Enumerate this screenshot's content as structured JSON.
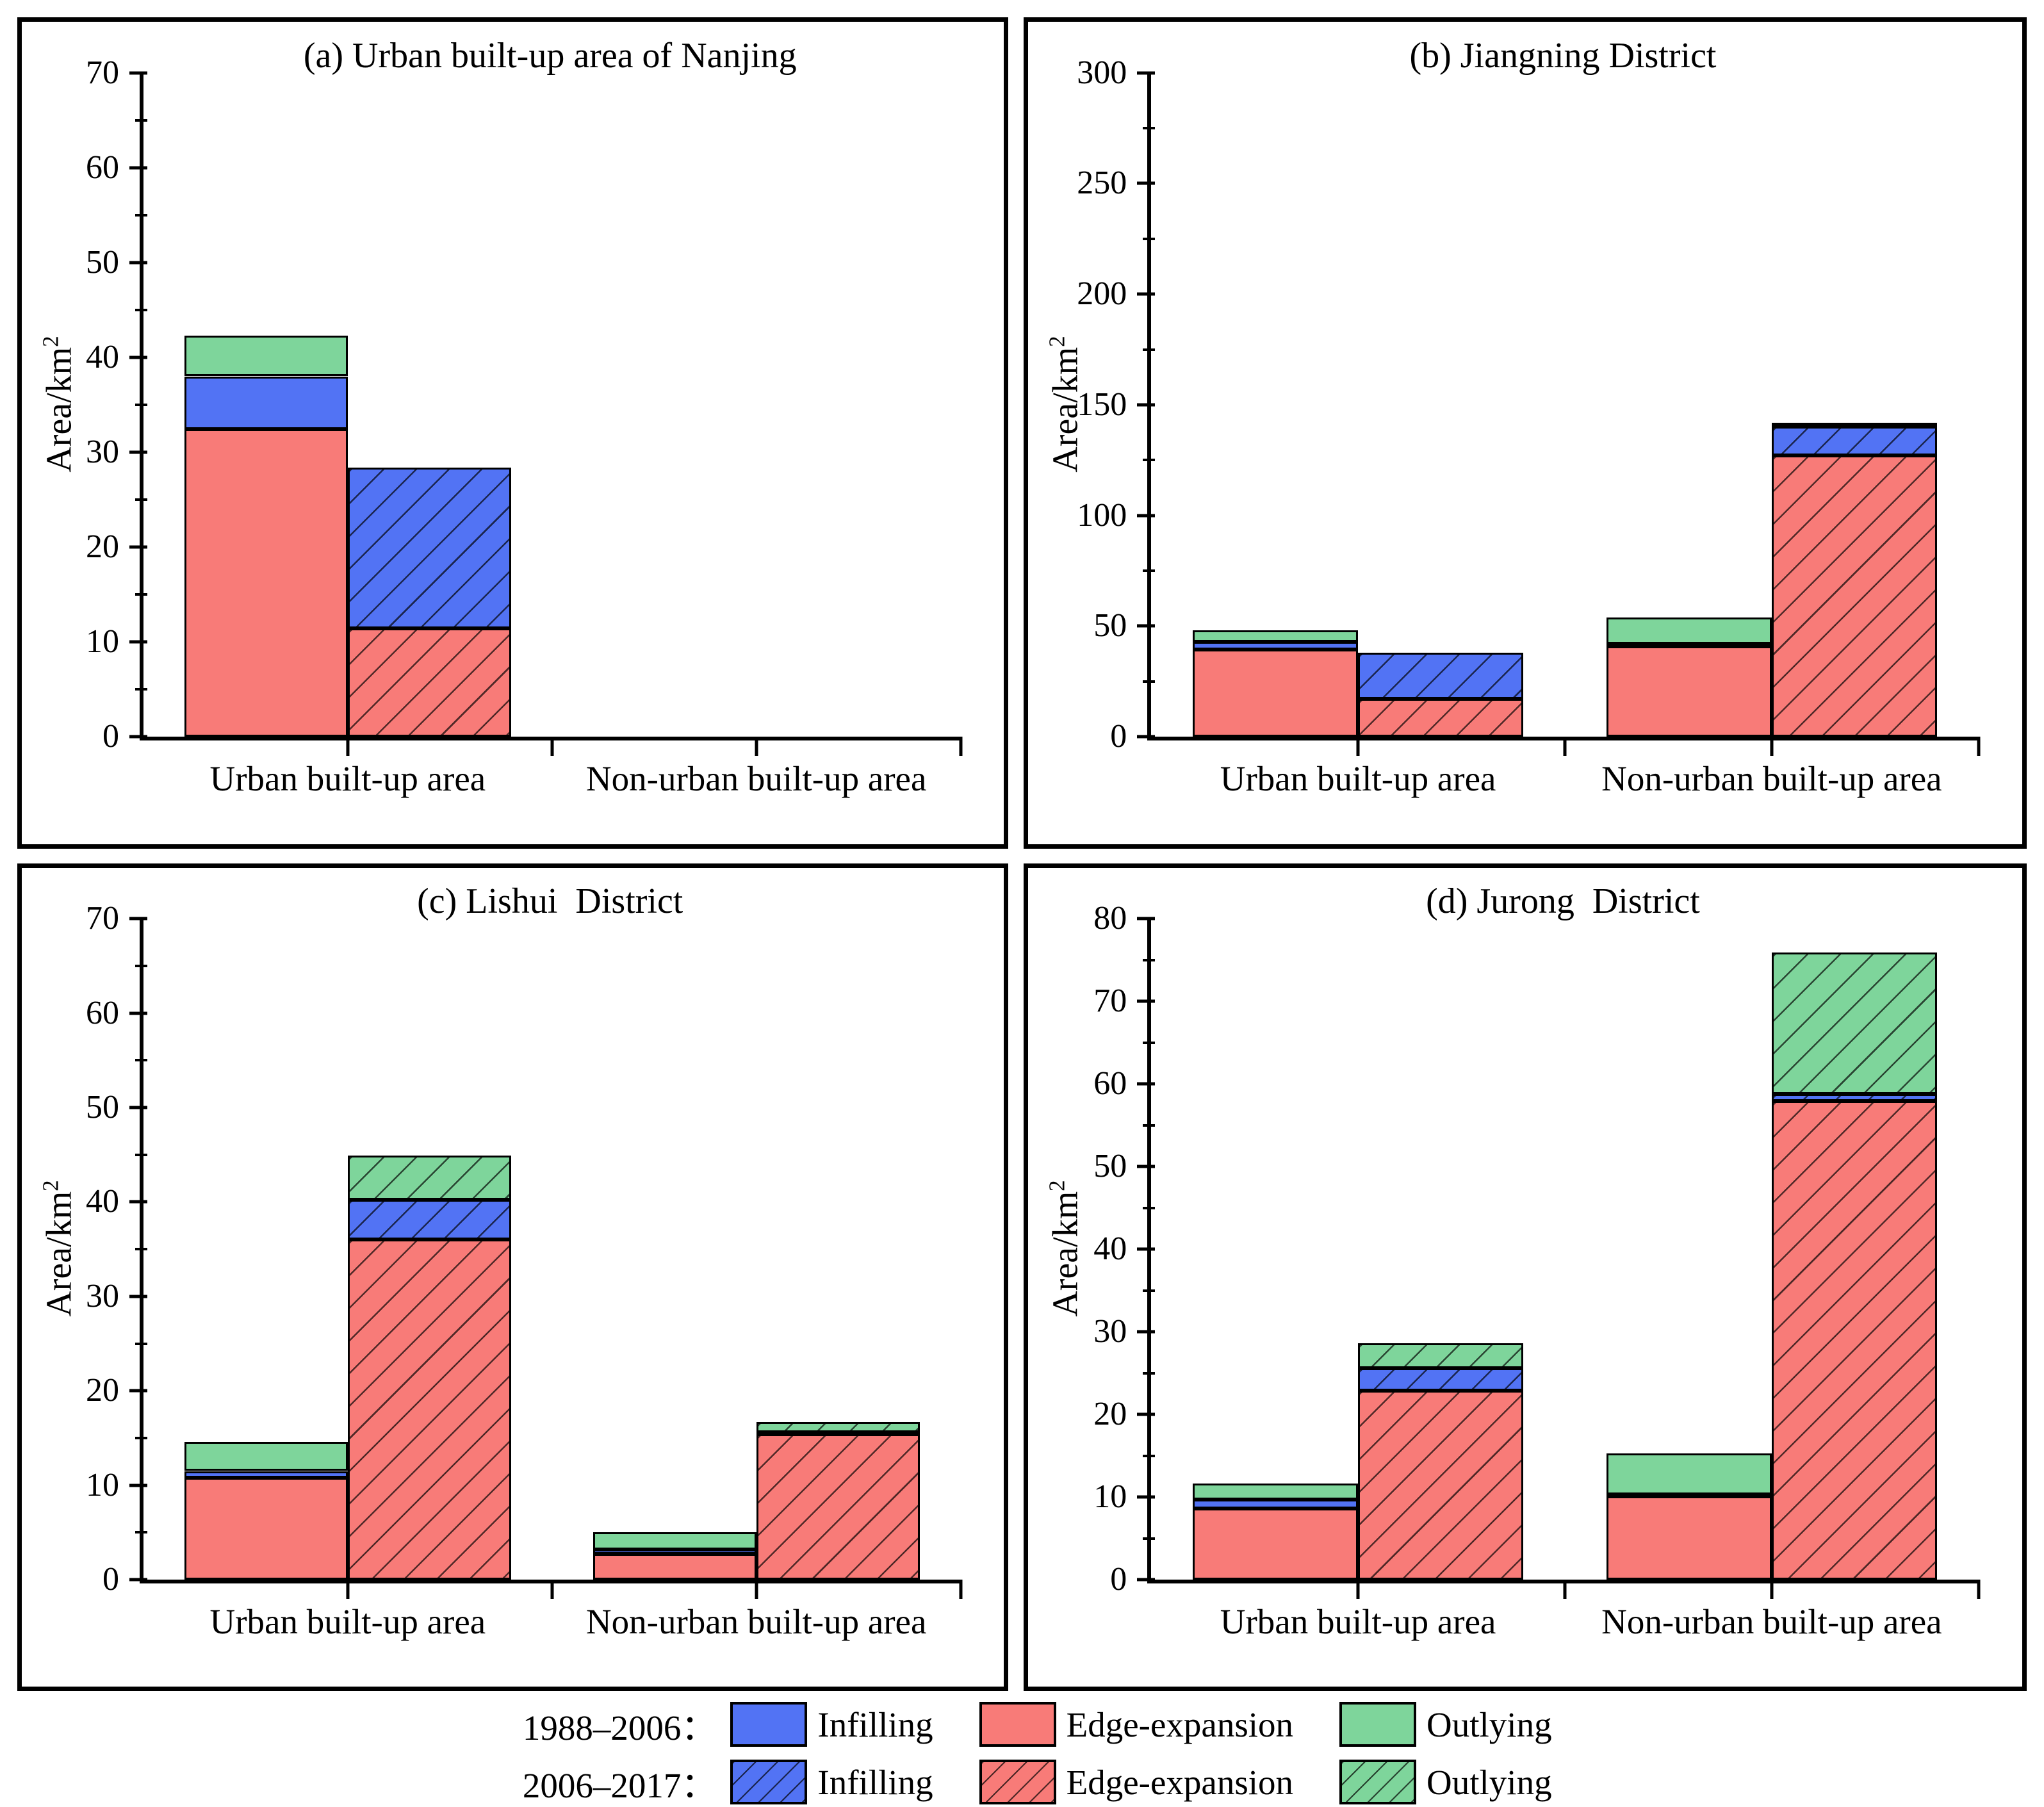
{
  "figure": {
    "ylabel_base": "Area/km",
    "ylabel_sup": "2"
  },
  "colors": {
    "infilling": "#5273F4",
    "edge_expansion": "#F87B78",
    "outlying": "#7ED59B",
    "bar_border": "#000000"
  },
  "legend": {
    "rows": [
      {
        "period": "1988–2006：",
        "hatched": false,
        "items": [
          {
            "label": "Infilling",
            "color": "infilling"
          },
          {
            "label": "Edge-expansion",
            "color": "edge_expansion"
          },
          {
            "label": "Outlying",
            "color": "outlying"
          }
        ]
      },
      {
        "period": "2006–2017：",
        "hatched": true,
        "items": [
          {
            "label": "Infilling",
            "color": "infilling"
          },
          {
            "label": "Edge-expansion",
            "color": "edge_expansion"
          },
          {
            "label": "Outlying",
            "color": "outlying"
          }
        ]
      }
    ]
  },
  "chart_data": [
    {
      "id": "a",
      "type": "bar",
      "title": "(a) Urban built-up area of Nanjing",
      "ylabel": "Area/km²",
      "xlabel": "",
      "ylim": [
        0,
        70
      ],
      "yticks": [
        0,
        10,
        20,
        30,
        40,
        50,
        60,
        70
      ],
      "yminor": 5,
      "categories": [
        "Urban built-up area",
        "Non-urban built-up area"
      ],
      "stack_order": [
        "edge_expansion",
        "infilling",
        "outlying"
      ],
      "groups": [
        {
          "category": "Urban built-up area",
          "bars": [
            {
              "period": "1988–2006",
              "hatched": false,
              "segments": {
                "edge_expansion": 32.4,
                "infilling": 5.6,
                "outlying": 4.3
              }
            },
            {
              "period": "2006–2017",
              "hatched": true,
              "segments": {
                "edge_expansion": 11.4,
                "infilling": 17.0,
                "outlying": 0
              }
            }
          ]
        },
        {
          "category": "Non-urban built-up area",
          "bars": [
            {
              "period": "1988–2006",
              "hatched": false,
              "segments": {
                "edge_expansion": 0,
                "infilling": 0,
                "outlying": 0
              }
            },
            {
              "period": "2006–2017",
              "hatched": true,
              "segments": {
                "edge_expansion": 0,
                "infilling": 0,
                "outlying": 0
              }
            }
          ]
        }
      ]
    },
    {
      "id": "b",
      "type": "bar",
      "title": "(b) Jiangning District",
      "ylabel": "Area/km²",
      "xlabel": "",
      "ylim": [
        0,
        300
      ],
      "yticks": [
        0,
        50,
        100,
        150,
        200,
        250,
        300
      ],
      "yminor": 25,
      "categories": [
        "Urban built-up area",
        "Non-urban built-up area"
      ],
      "stack_order": [
        "edge_expansion",
        "infilling",
        "outlying"
      ],
      "groups": [
        {
          "category": "Urban built-up area",
          "bars": [
            {
              "period": "1988–2006",
              "hatched": false,
              "segments": {
                "edge_expansion": 39.5,
                "infilling": 3.5,
                "outlying": 5.0
              }
            },
            {
              "period": "2006–2017",
              "hatched": true,
              "segments": {
                "edge_expansion": 17.0,
                "infilling": 21.0,
                "outlying": 0
              }
            }
          ]
        },
        {
          "category": "Non-urban built-up area",
          "bars": [
            {
              "period": "1988–2006",
              "hatched": false,
              "segments": {
                "edge_expansion": 41.0,
                "infilling": 1.0,
                "outlying": 12.0
              }
            },
            {
              "period": "2006–2017",
              "hatched": true,
              "segments": {
                "edge_expansion": 127.0,
                "infilling": 13.0,
                "outlying": 2.0
              }
            }
          ]
        }
      ]
    },
    {
      "id": "c",
      "type": "bar",
      "title": "(c) Lishui  District",
      "ylabel": "Area/km²",
      "xlabel": "",
      "ylim": [
        0,
        70
      ],
      "yticks": [
        0,
        10,
        20,
        30,
        40,
        50,
        60,
        70
      ],
      "yminor": 5,
      "categories": [
        "Urban built-up area",
        "Non-urban built-up area"
      ],
      "stack_order": [
        "edge_expansion",
        "infilling",
        "outlying"
      ],
      "groups": [
        {
          "category": "Urban built-up area",
          "bars": [
            {
              "period": "1988–2006",
              "hatched": false,
              "segments": {
                "edge_expansion": 10.8,
                "infilling": 0.7,
                "outlying": 3.1
              }
            },
            {
              "period": "2006–2017",
              "hatched": true,
              "segments": {
                "edge_expansion": 36.0,
                "infilling": 4.2,
                "outlying": 4.7
              }
            }
          ]
        },
        {
          "category": "Non-urban built-up area",
          "bars": [
            {
              "period": "1988–2006",
              "hatched": false,
              "segments": {
                "edge_expansion": 2.7,
                "infilling": 0.5,
                "outlying": 1.8
              }
            },
            {
              "period": "2006–2017",
              "hatched": true,
              "segments": {
                "edge_expansion": 15.4,
                "infilling": 0.2,
                "outlying": 1.1
              }
            }
          ]
        }
      ]
    },
    {
      "id": "d",
      "type": "bar",
      "title": "(d) Jurong  District",
      "ylabel": "Area/km²",
      "xlabel": "",
      "ylim": [
        0,
        80
      ],
      "yticks": [
        0,
        10,
        20,
        30,
        40,
        50,
        60,
        70,
        80
      ],
      "yminor": 5,
      "categories": [
        "Urban built-up area",
        "Non-urban built-up area"
      ],
      "stack_order": [
        "edge_expansion",
        "infilling",
        "outlying"
      ],
      "groups": [
        {
          "category": "Urban built-up area",
          "bars": [
            {
              "period": "1988–2006",
              "hatched": false,
              "segments": {
                "edge_expansion": 8.6,
                "infilling": 1.1,
                "outlying": 1.9
              }
            },
            {
              "period": "2006–2017",
              "hatched": true,
              "segments": {
                "edge_expansion": 22.9,
                "infilling": 2.7,
                "outlying": 3.0
              }
            }
          ]
        },
        {
          "category": "Non-urban built-up area",
          "bars": [
            {
              "period": "1988–2006",
              "hatched": false,
              "segments": {
                "edge_expansion": 10.1,
                "infilling": 0.2,
                "outlying": 5.0
              }
            },
            {
              "period": "2006–2017",
              "hatched": true,
              "segments": {
                "edge_expansion": 57.9,
                "infilling": 0.9,
                "outlying": 17.1
              }
            }
          ]
        }
      ]
    }
  ]
}
